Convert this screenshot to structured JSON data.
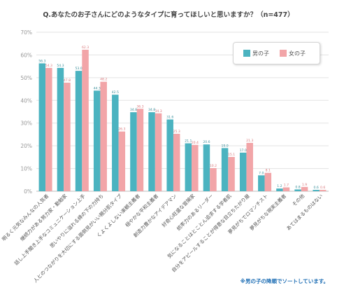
{
  "title": "Q.あなたのお子さんにどのようなタイプに育ってほしいと思いますか？（n=477）",
  "note": "※男の子の降順でソートしています。",
  "colors": {
    "boy": "#4bb3c0",
    "girl": "#f2a5a8",
    "grid": "#e3e3e3",
    "axis_text": "#999999"
  },
  "chart_data": {
    "type": "bar",
    "title": "Q.あなたのお子さんにどのようなタイプに育ってほしいと思いますか？（n=477）",
    "ylim": [
      0,
      70
    ],
    "y_ticks": [
      "0%",
      "10%",
      "20%",
      "30%",
      "40%",
      "50%",
      "60%",
      "70%"
    ],
    "grid": true,
    "legend_position": "top-right",
    "categories": [
      "明るく元気なみんなの人気者",
      "継続力がある努力家・勤勉家",
      "話し上手聞き上手なコミュニケーション上手",
      "思いやりに溢れる縁の下の力持ち",
      "人とのつながりを大切にする面倒見がいい親分肌タイプ",
      "くよくよしない楽観主義者",
      "穏やかな平和主義者",
      "創造力豊かなアイデアマン",
      "好奇心旺盛な冒険家",
      "統率力のあるリーダー",
      "気になることはとことん追求する学者肌",
      "自分をアピールすることが得意な目立ちたがり屋",
      "夢見がちでロマンチスト",
      "夢見がちな現実主義者",
      "その他",
      "あてはまるものはない"
    ],
    "series": [
      {
        "name": "男の子",
        "values": [
          56.3,
          54.3,
          53.0,
          44.3,
          42.5,
          34.8,
          34.8,
          31.6,
          21.1,
          20.6,
          19.0,
          17.0,
          7.0,
          1.2,
          0.8,
          0.6
        ]
      },
      {
        "name": "女の子",
        "values": [
          54.3,
          47.8,
          62.3,
          48.2,
          26.3,
          36.3,
          34.3,
          25.3,
          20.4,
          10.2,
          15.1,
          21.3,
          8.1,
          1.7,
          1.9,
          0.6
        ]
      }
    ]
  }
}
